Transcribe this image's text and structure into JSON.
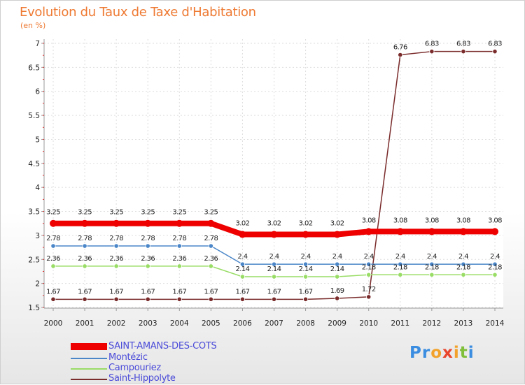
{
  "title": "Evolution du Taux de Taxe d'Habitation",
  "unit": "(en %)",
  "chart_data": {
    "type": "line",
    "x": [
      "2000",
      "2001",
      "2002",
      "2003",
      "2004",
      "2005",
      "2006",
      "2007",
      "2008",
      "2009",
      "2010",
      "2011",
      "2012",
      "2013",
      "2014"
    ],
    "ylim": [
      1.5,
      7
    ],
    "yticks": [
      "1.5",
      "2",
      "2.5",
      "3",
      "3.5",
      "4",
      "4.5",
      "5",
      "5.5",
      "6",
      "6.5",
      "7"
    ],
    "series": [
      {
        "name": "SAINT-AMANS-DES-COTS",
        "color": "#ee0000",
        "width": 8,
        "values": [
          3.25,
          3.25,
          3.25,
          3.25,
          3.25,
          3.25,
          3.02,
          3.02,
          3.02,
          3.02,
          3.08,
          3.08,
          3.08,
          3.08,
          3.08
        ],
        "labels": [
          "3.25",
          "3.25",
          "3.25",
          "3.25",
          "3.25",
          "3.25",
          "3.02",
          "3.02",
          "3.02",
          "3.02",
          "3.08",
          "3.08",
          "3.08",
          "3.08",
          "3.08"
        ]
      },
      {
        "name": "Montézic",
        "color": "#4a86c8",
        "width": 1.5,
        "values": [
          2.78,
          2.78,
          2.78,
          2.78,
          2.78,
          2.78,
          2.4,
          2.4,
          2.4,
          2.4,
          2.4,
          2.4,
          2.4,
          2.4,
          2.4
        ],
        "labels": [
          "2.78",
          "2.78",
          "2.78",
          "2.78",
          "2.78",
          "2.78",
          "2.4",
          "2.4",
          "2.4",
          "2.4",
          "2.4",
          "2.4",
          "2.4",
          "2.4",
          "2.4"
        ]
      },
      {
        "name": "Campouriez",
        "color": "#99dd66",
        "width": 1.5,
        "values": [
          2.36,
          2.36,
          2.36,
          2.36,
          2.36,
          2.36,
          2.14,
          2.14,
          2.14,
          2.14,
          2.18,
          2.18,
          2.18,
          2.18,
          2.18
        ],
        "labels": [
          "2.36",
          "2.36",
          "2.36",
          "2.36",
          "2.36",
          "2.36",
          "2.14",
          "2.14",
          "2.14",
          "2.14",
          "2.18",
          "2.18",
          "2.18",
          "2.18",
          "2.18"
        ]
      },
      {
        "name": "Saint-Hippolyte",
        "color": "#7a2b2b",
        "width": 1.5,
        "values": [
          1.67,
          1.67,
          1.67,
          1.67,
          1.67,
          1.67,
          1.67,
          1.67,
          1.67,
          1.69,
          1.72,
          6.76,
          6.83,
          6.83,
          6.83
        ],
        "labels": [
          "1.67",
          "1.67",
          "1.67",
          "1.67",
          "1.67",
          "1.67",
          "1.67",
          "1.67",
          "1.67",
          "1.69",
          "1.72",
          "6.76",
          "6.83",
          "6.83",
          "6.83"
        ]
      }
    ]
  },
  "logo": {
    "letters": [
      "P",
      "r",
      "o",
      "x",
      "i",
      "t",
      "i"
    ],
    "colors": [
      "#3a8de0",
      "#3a8de0",
      "#f2a22b",
      "#e8452c",
      "#f2a22b",
      "#7fbf3a",
      "#3a8de0"
    ]
  }
}
